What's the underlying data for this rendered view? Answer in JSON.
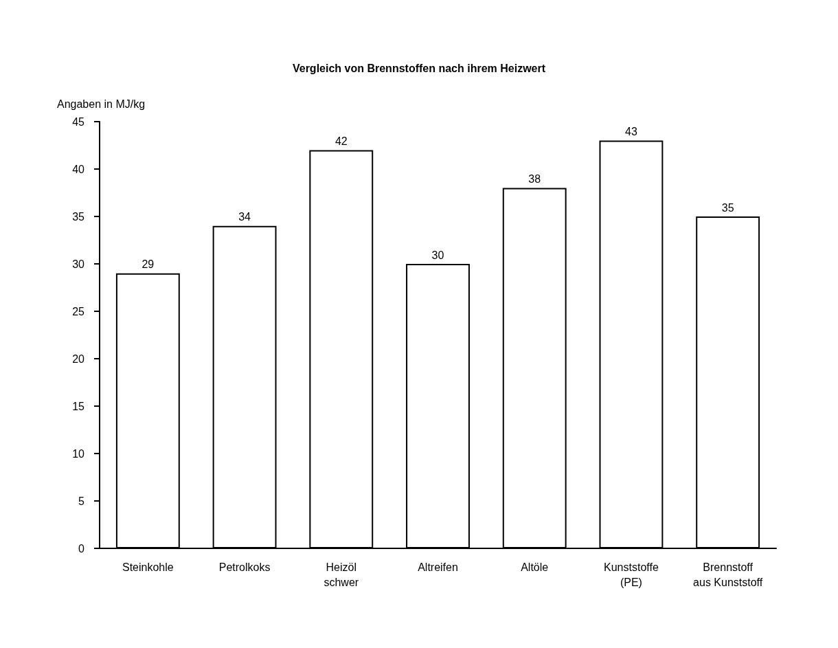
{
  "chart_data": {
    "type": "bar",
    "title": "Vergleich von Brennstoffen nach ihrem Heizwert",
    "ylabel": "Angaben in MJ/kg",
    "categories": [
      "Steinkohle",
      "Petrolkoks",
      "Heizöl\nschwer",
      "Altreifen",
      "Altöle",
      "Kunststoffe\n(PE)",
      "Brennstoff\naus Kunststoff"
    ],
    "values": [
      29,
      34,
      42,
      30,
      38,
      43,
      35
    ],
    "color": "#ffffff",
    "ylim": [
      0,
      45
    ],
    "yticks": [
      0,
      5,
      10,
      15,
      20,
      25,
      30,
      35,
      40,
      45
    ],
    "data_labels": true,
    "grid": false
  }
}
